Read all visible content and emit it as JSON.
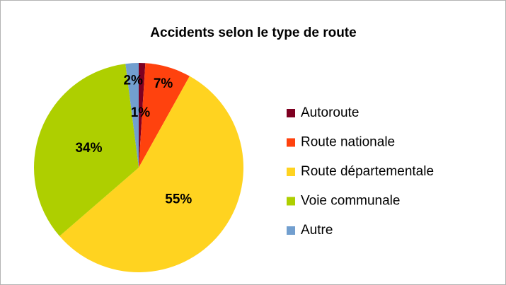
{
  "chart_data": {
    "type": "pie",
    "title": "Accidents selon le type de route",
    "categories": [
      "Autoroute",
      "Route nationale",
      "Route départementale",
      "Voie communale",
      "Autre"
    ],
    "values": [
      1,
      7,
      55,
      34,
      2
    ],
    "value_labels": [
      "1%",
      "7%",
      "55%",
      "34%",
      "2%"
    ],
    "colors": [
      "#7e0021",
      "#ff420e",
      "#ffd320",
      "#aecf00",
      "#729fcf"
    ],
    "legend": "right"
  }
}
